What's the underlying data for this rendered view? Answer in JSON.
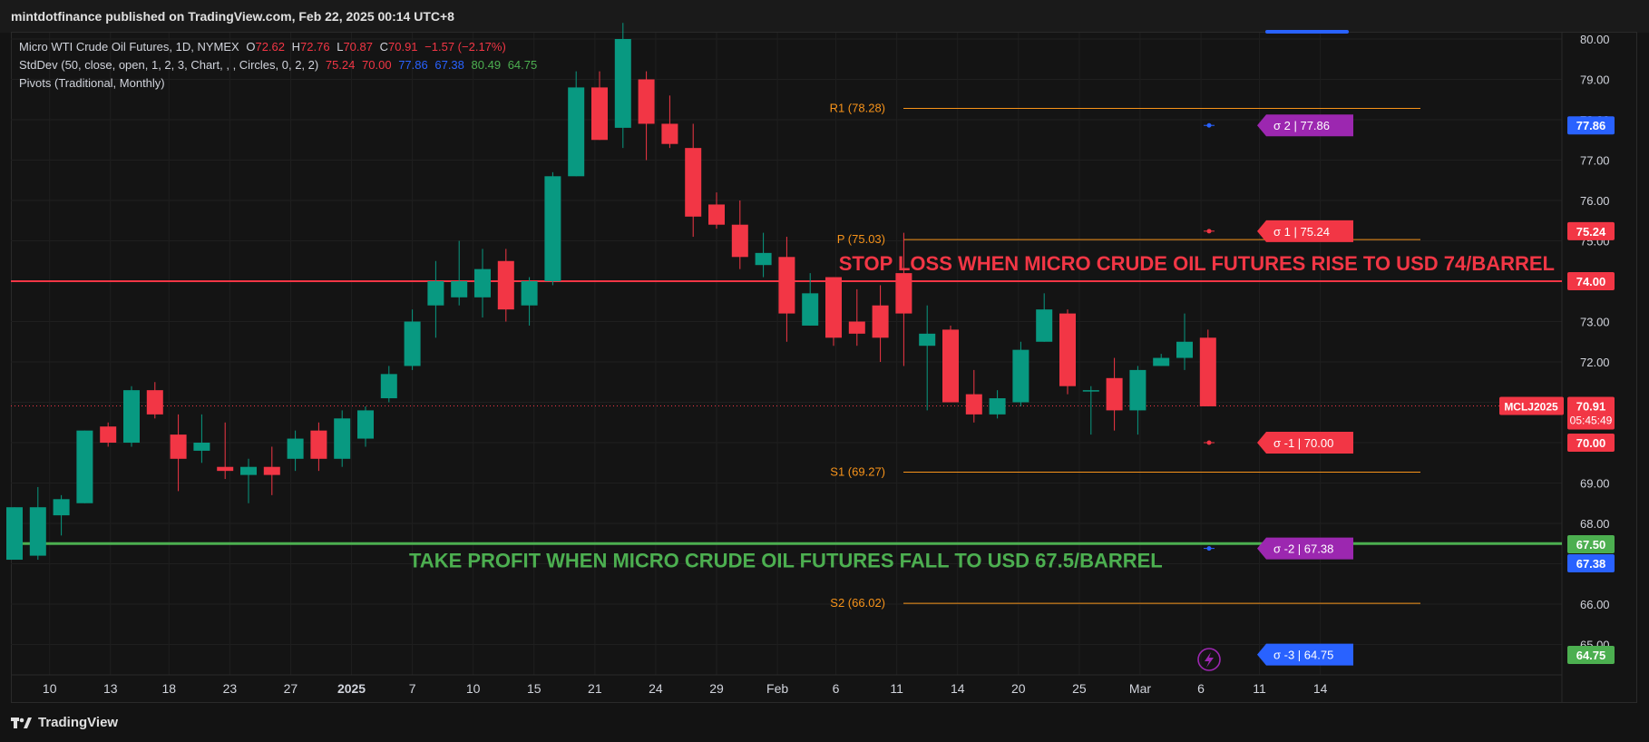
{
  "header": {
    "publisher": "mintdotfinance published on TradingView.com, Feb 22, 2025 00:14 UTC+8"
  },
  "legend": {
    "symbol": "Micro WTI Crude Oil Futures, 1D, NYMEX",
    "o_label": "O",
    "o": "72.62",
    "h_label": "H",
    "h": "72.76",
    "l_label": "L",
    "l": "70.87",
    "c_label": "C",
    "c": "70.91",
    "change": "−1.57 (−2.17%)",
    "stddev_label": "StdDev (50, close, open, 1, 2, 3, Chart, , , Circles, 0, 2, 2)",
    "stddev_values": [
      "75.24",
      "70.00",
      "77.86",
      "67.38",
      "80.49",
      "64.75"
    ],
    "pivots_label": "Pivots (Traditional, Monthly)"
  },
  "footer": {
    "brand": "TradingView"
  },
  "colors": {
    "up": "#089981",
    "down": "#f23645",
    "stop": "#f23645",
    "take": "#4caf50",
    "pivot": "#f7931a",
    "purple": "#9c27b0",
    "blue": "#2962ff"
  },
  "chart_data": {
    "type": "candlestick",
    "symbol_tag": "MCLJ2025",
    "countdown": "05:45:49",
    "ylim": [
      64.8,
      80.3
    ],
    "y_ticks": [
      "65.00",
      "66.00",
      "67.00",
      "68.00",
      "69.00",
      "70.00",
      "71.00",
      "72.00",
      "73.00",
      "74.00",
      "75.00",
      "76.00",
      "77.00",
      "78.00",
      "79.00",
      "80.00"
    ],
    "x_ticks": [
      "10",
      "13",
      "18",
      "23",
      "27",
      "2025",
      "7",
      "10",
      "15",
      "21",
      "24",
      "29",
      "Feb",
      "6",
      "11",
      "14",
      "20",
      "25",
      "Mar",
      "6",
      "11",
      "14"
    ],
    "candles": [
      {
        "o": 67.1,
        "h": 68.4,
        "l": 67.1,
        "c": 68.4
      },
      {
        "o": 67.2,
        "h": 68.9,
        "l": 67.1,
        "c": 68.4
      },
      {
        "o": 68.2,
        "h": 68.7,
        "l": 67.7,
        "c": 68.6
      },
      {
        "o": 68.5,
        "h": 70.3,
        "l": 68.5,
        "c": 70.3
      },
      {
        "o": 70.4,
        "h": 70.5,
        "l": 69.9,
        "c": 70.0
      },
      {
        "o": 70.0,
        "h": 71.4,
        "l": 69.9,
        "c": 71.3
      },
      {
        "o": 71.3,
        "h": 71.5,
        "l": 70.6,
        "c": 70.7
      },
      {
        "o": 70.2,
        "h": 70.7,
        "l": 68.8,
        "c": 69.6
      },
      {
        "o": 69.8,
        "h": 70.7,
        "l": 69.5,
        "c": 70.0
      },
      {
        "o": 69.4,
        "h": 70.5,
        "l": 69.1,
        "c": 69.3
      },
      {
        "o": 69.2,
        "h": 69.6,
        "l": 68.5,
        "c": 69.4
      },
      {
        "o": 69.4,
        "h": 69.9,
        "l": 68.7,
        "c": 69.2
      },
      {
        "o": 69.6,
        "h": 70.3,
        "l": 69.3,
        "c": 70.1
      },
      {
        "o": 70.3,
        "h": 70.5,
        "l": 69.3,
        "c": 69.6
      },
      {
        "o": 69.6,
        "h": 70.8,
        "l": 69.4,
        "c": 70.6
      },
      {
        "o": 70.1,
        "h": 70.9,
        "l": 69.9,
        "c": 70.8
      },
      {
        "o": 71.1,
        "h": 71.9,
        "l": 71.0,
        "c": 71.7
      },
      {
        "o": 71.9,
        "h": 73.3,
        "l": 71.8,
        "c": 73.0
      },
      {
        "o": 73.4,
        "h": 74.5,
        "l": 72.6,
        "c": 74.0
      },
      {
        "o": 73.6,
        "h": 75.0,
        "l": 73.4,
        "c": 74.0
      },
      {
        "o": 73.6,
        "h": 74.8,
        "l": 73.1,
        "c": 74.3
      },
      {
        "o": 74.5,
        "h": 74.8,
        "l": 73.0,
        "c": 73.3
      },
      {
        "o": 73.4,
        "h": 74.1,
        "l": 72.9,
        "c": 74.0
      },
      {
        "o": 74.0,
        "h": 76.7,
        "l": 73.9,
        "c": 76.6
      },
      {
        "o": 76.6,
        "h": 79.2,
        "l": 76.6,
        "c": 78.8
      },
      {
        "o": 78.8,
        "h": 79.2,
        "l": 77.5,
        "c": 77.5
      },
      {
        "o": 77.8,
        "h": 80.4,
        "l": 77.3,
        "c": 80.0
      },
      {
        "o": 79.0,
        "h": 79.2,
        "l": 77.0,
        "c": 77.9
      },
      {
        "o": 77.9,
        "h": 78.6,
        "l": 77.3,
        "c": 77.4
      },
      {
        "o": 77.3,
        "h": 77.9,
        "l": 75.1,
        "c": 75.6
      },
      {
        "o": 75.9,
        "h": 76.2,
        "l": 75.3,
        "c": 75.4
      },
      {
        "o": 75.4,
        "h": 76.0,
        "l": 74.3,
        "c": 74.6
      },
      {
        "o": 74.4,
        "h": 75.2,
        "l": 74.1,
        "c": 74.7
      },
      {
        "o": 74.6,
        "h": 75.1,
        "l": 72.5,
        "c": 73.2
      },
      {
        "o": 72.9,
        "h": 74.2,
        "l": 72.9,
        "c": 73.7
      },
      {
        "o": 74.1,
        "h": 74.1,
        "l": 72.4,
        "c": 72.6
      },
      {
        "o": 73.0,
        "h": 73.8,
        "l": 72.4,
        "c": 72.7
      },
      {
        "o": 73.4,
        "h": 73.9,
        "l": 72.0,
        "c": 72.6
      },
      {
        "o": 74.2,
        "h": 75.2,
        "l": 71.9,
        "c": 73.2
      },
      {
        "o": 72.4,
        "h": 73.4,
        "l": 70.8,
        "c": 72.7
      },
      {
        "o": 72.8,
        "h": 72.9,
        "l": 71.0,
        "c": 71.0
      },
      {
        "o": 71.2,
        "h": 71.8,
        "l": 70.5,
        "c": 70.7
      },
      {
        "o": 70.7,
        "h": 71.3,
        "l": 70.6,
        "c": 71.1
      },
      {
        "o": 71.0,
        "h": 72.5,
        "l": 70.9,
        "c": 72.3
      },
      {
        "o": 72.5,
        "h": 73.7,
        "l": 72.5,
        "c": 73.3
      },
      {
        "o": 73.2,
        "h": 73.3,
        "l": 71.2,
        "c": 71.4
      },
      {
        "o": 71.3,
        "h": 71.4,
        "l": 70.2,
        "c": 71.3
      },
      {
        "o": 71.6,
        "h": 72.1,
        "l": 70.3,
        "c": 70.8
      },
      {
        "o": 70.8,
        "h": 71.9,
        "l": 70.2,
        "c": 71.8
      },
      {
        "o": 71.9,
        "h": 72.2,
        "l": 71.9,
        "c": 72.1
      },
      {
        "o": 72.1,
        "h": 73.2,
        "l": 71.8,
        "c": 72.5
      },
      {
        "o": 72.6,
        "h": 72.8,
        "l": 70.9,
        "c": 70.9
      }
    ],
    "pivot_lines": [
      {
        "name": "R1",
        "label": "R1 (78.28)",
        "value": 78.28
      },
      {
        "name": "P",
        "label": "P (75.03)",
        "value": 75.03
      },
      {
        "name": "S1",
        "label": "S1 (69.27)",
        "value": 69.27
      },
      {
        "name": "S2",
        "label": "S2 (66.02)",
        "value": 66.02
      }
    ],
    "sigma_tags": [
      {
        "label": "σ 2 | 77.86",
        "value": 77.86,
        "color": "#9c27b0",
        "dot": "#2962ff"
      },
      {
        "label": "σ 1 | 75.24",
        "value": 75.24,
        "color": "#f23645",
        "dot": "#f23645"
      },
      {
        "label": "σ -1 | 70.00",
        "value": 70.0,
        "color": "#f23645",
        "dot": "#f23645"
      },
      {
        "label": "σ -2 | 67.38",
        "value": 67.38,
        "color": "#9c27b0",
        "dot": "#2962ff"
      },
      {
        "label": "σ -3 | 64.75",
        "value": 64.75,
        "color": "#2962ff",
        "dot": "#2962ff"
      }
    ],
    "stop_loss": {
      "value": 74.0,
      "label": "STOP LOSS WHEN MICRO CRUDE OIL FUTURES RISE TO USD 74/BARREL"
    },
    "take_profit": {
      "value": 67.5,
      "label": "TAKE PROFIT WHEN MICRO CRUDE OIL FUTURES FALL TO USD 67.5/BARREL"
    },
    "price_tags": [
      {
        "text": "77.86",
        "value": 77.86,
        "color": "#2962ff"
      },
      {
        "text": "75.24",
        "value": 75.24,
        "color": "#f23645"
      },
      {
        "text": "74.00",
        "value": 74.0,
        "color": "#f23645"
      },
      {
        "text": "70.91",
        "value": 70.91,
        "color": "#f23645"
      },
      {
        "text": "70.00",
        "value": 70.0,
        "color": "#f23645"
      },
      {
        "text": "67.50",
        "value": 67.5,
        "color": "#4caf50"
      },
      {
        "text": "67.38",
        "value": 67.38,
        "color": "#2962ff"
      },
      {
        "text": "64.75",
        "value": 64.75,
        "color": "#4caf50"
      }
    ],
    "last_price": 70.91
  }
}
